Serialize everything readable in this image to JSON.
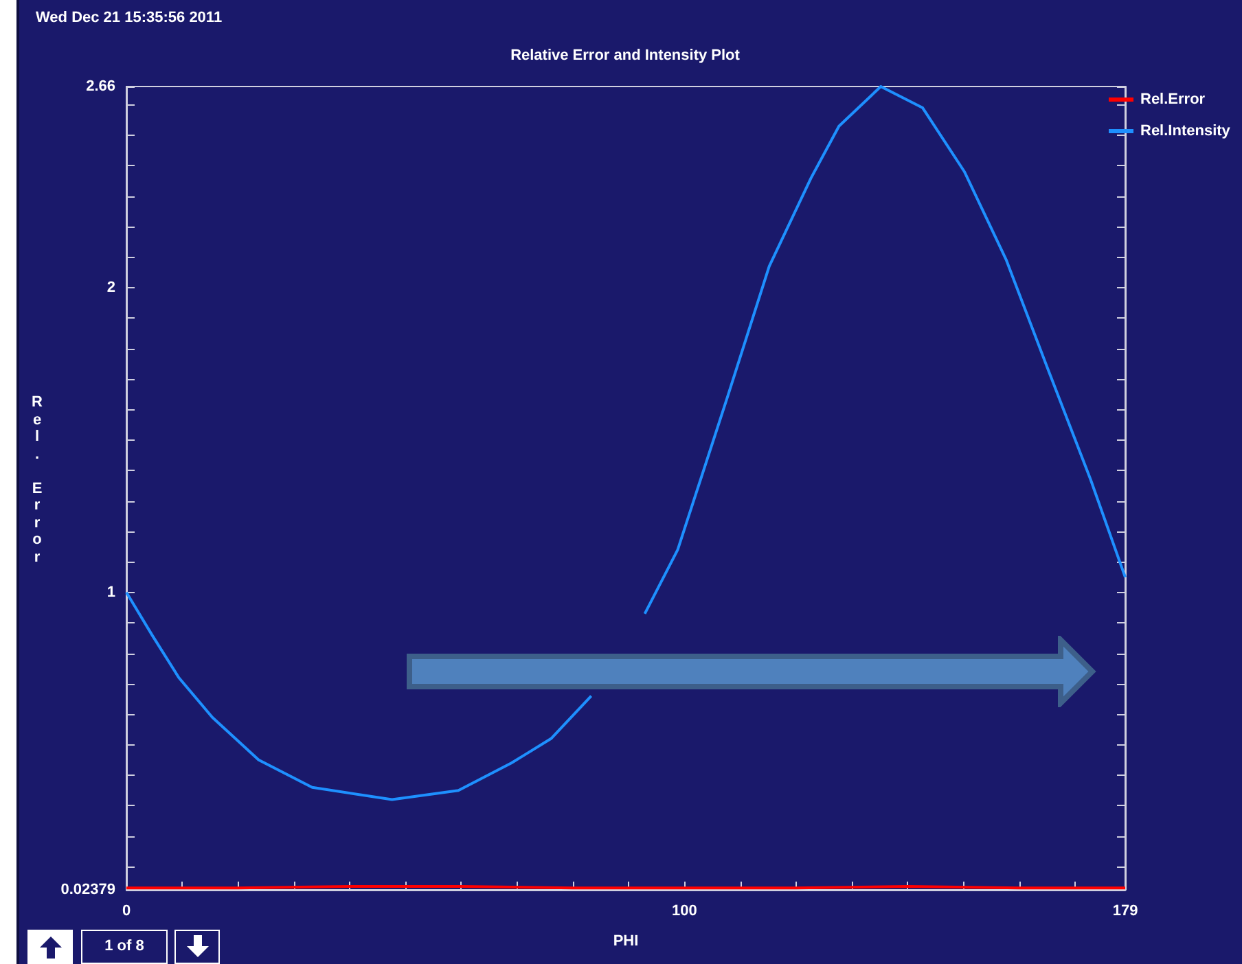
{
  "chart_data": {
    "type": "line",
    "title": "Relative Error and Intensity Plot",
    "xlabel": "PHI",
    "ylabel": "Rel. Error",
    "annotations": [
      "Wed Dec 21 15:35:56 2011",
      "1 of 8"
    ],
    "series": [
      {
        "name": "Rel.Error",
        "color": "#ff0000",
        "x": [
          0,
          20,
          40,
          60,
          80,
          100,
          120,
          140,
          160,
          179
        ],
        "values": [
          0.03,
          0.03,
          0.035,
          0.035,
          0.03,
          0.03,
          0.03,
          0.035,
          0.03,
          0.03
        ]
      },
      {
        "name": "Rel.Intensity",
        "color": "#1e90ff",
        "x": [
          0,
          4.6,
          9.4,
          15.4,
          23.7,
          33.3,
          47.6,
          59.5,
          69,
          76.1,
          83.3,
          88.1,
          92.9,
          98.8,
          107.7,
          115.2,
          122.7,
          127.7,
          135.2,
          142.7,
          150.2,
          157.7,
          165.2,
          172.8,
          179
        ],
        "values": [
          1.0,
          0.86,
          0.72,
          0.59,
          0.45,
          0.36,
          0.32,
          0.35,
          0.44,
          0.52,
          0.66,
          null,
          0.93,
          1.14,
          1.64,
          2.07,
          2.36,
          2.53,
          2.66,
          2.59,
          2.38,
          2.09,
          1.73,
          1.37,
          1.05
        ]
      }
    ],
    "xlim": [
      0,
      179
    ],
    "xticks": [
      0,
      {
        "value": 10,
        "label": null
      },
      {
        "value": 20,
        "label": null
      },
      {
        "value": 30,
        "label": null
      },
      {
        "value": 40,
        "label": null
      },
      {
        "value": 50,
        "label": null
      },
      {
        "value": 60,
        "label": null
      },
      {
        "value": 70,
        "label": null
      },
      {
        "value": 80,
        "label": null
      },
      {
        "value": 90,
        "label": null
      },
      100,
      {
        "value": 110,
        "label": null
      },
      {
        "value": 120,
        "label": null
      },
      {
        "value": 130,
        "label": null
      },
      {
        "value": 140,
        "label": null
      },
      {
        "value": 150,
        "label": null
      },
      {
        "value": 160,
        "label": null
      },
      {
        "value": 170,
        "label": null
      },
      179
    ],
    "ylim": [
      0.02379,
      2.66
    ],
    "yticks": [
      0.02379,
      {
        "value": 0.1,
        "label": null
      },
      {
        "value": 0.2,
        "label": null
      },
      {
        "value": 0.3,
        "label": null
      },
      {
        "value": 0.4,
        "label": null
      },
      {
        "value": 0.5,
        "label": null
      },
      {
        "value": 0.6,
        "label": null
      },
      {
        "value": 0.7,
        "label": null
      },
      {
        "value": 0.8,
        "label": null
      },
      {
        "value": 0.9,
        "label": null
      },
      1,
      {
        "value": 1.1,
        "label": null
      },
      {
        "value": 1.2,
        "label": null
      },
      {
        "value": 1.3,
        "label": null
      },
      {
        "value": 1.4,
        "label": null
      },
      {
        "value": 1.5,
        "label": null
      },
      {
        "value": 1.6,
        "label": null
      },
      {
        "value": 1.7,
        "label": null
      },
      {
        "value": 1.8,
        "label": null
      },
      {
        "value": 1.9,
        "label": null
      },
      2,
      {
        "value": 2.1,
        "label": null
      },
      {
        "value": 2.2,
        "label": null
      },
      {
        "value": 2.3,
        "label": null
      },
      {
        "value": 2.4,
        "label": null
      },
      {
        "value": 2.5,
        "label": null
      },
      {
        "value": 2.6,
        "label": null
      },
      2.66
    ],
    "grid": false,
    "legend": "top right",
    "marker": "none",
    "line_style": "solid"
  }
}
